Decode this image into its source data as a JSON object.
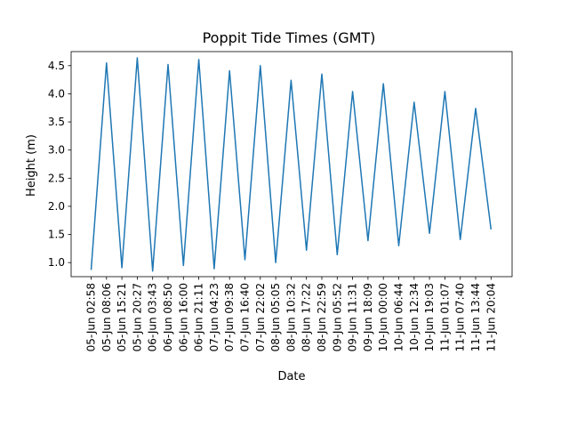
{
  "chart_data": {
    "type": "line",
    "title": "Poppit Tide Times (GMT)",
    "xlabel": "Date",
    "ylabel": "Height (m)",
    "ylim": [
      0.75,
      4.75
    ],
    "yticks": [
      "1.0",
      "1.5",
      "2.0",
      "2.5",
      "3.0",
      "3.5",
      "4.0",
      "4.5"
    ],
    "grid": false,
    "legend": "none",
    "line_color": "#1f77b4",
    "x": [
      "05-Jun 02:58",
      "05-Jun 08:06",
      "05-Jun 15:21",
      "05-Jun 20:27",
      "06-Jun 03:43",
      "06-Jun 08:50",
      "06-Jun 16:00",
      "06-Jun 21:11",
      "07-Jun 04:23",
      "07-Jun 09:38",
      "07-Jun 16:40",
      "07-Jun 22:02",
      "08-Jun 05:05",
      "08-Jun 10:32",
      "08-Jun 17:22",
      "08-Jun 22:59",
      "09-Jun 05:52",
      "09-Jun 11:31",
      "09-Jun 18:09",
      "10-Jun 00:00",
      "10-Jun 06:44",
      "10-Jun 12:34",
      "10-Jun 19:03",
      "11-Jun 01:07",
      "11-Jun 07:40",
      "11-Jun 13:44",
      "11-Jun 20:04"
    ],
    "series": [
      {
        "values": [
          0.87,
          4.55,
          0.91,
          4.64,
          0.85,
          4.52,
          0.95,
          4.61,
          0.89,
          4.41,
          1.05,
          4.5,
          1.0,
          4.24,
          1.22,
          4.35,
          1.14,
          4.04,
          1.39,
          4.18,
          1.3,
          3.85,
          1.52,
          4.04,
          1.41,
          3.74,
          1.59
        ]
      }
    ]
  }
}
